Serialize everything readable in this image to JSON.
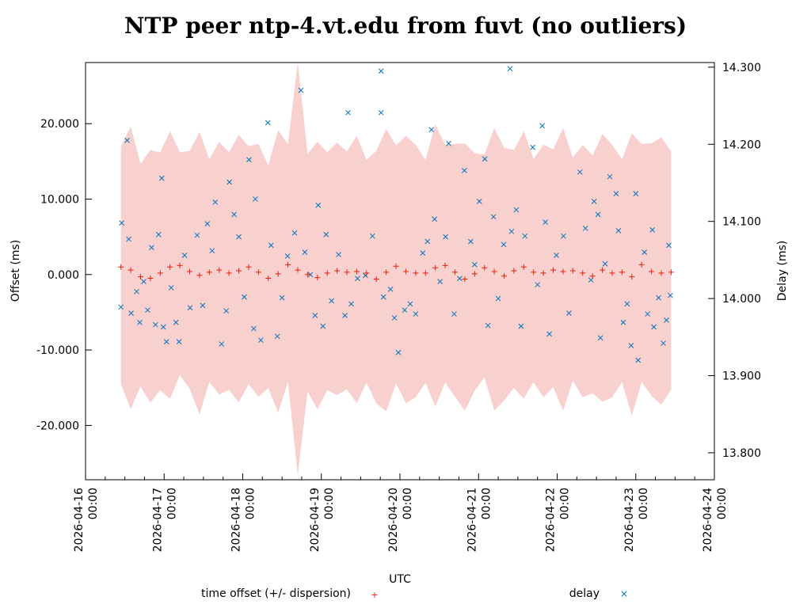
{
  "chart_data": {
    "type": "scatter",
    "title": "NTP peer ntp-4.vt.edu from fuvt (no outliers)",
    "xlabel": "UTC",
    "ylabel": "Offset (ms)",
    "y2label": "Delay (ms)",
    "x_unit": "days since 2026-04-16 00:00 UTC",
    "xlim": [
      0,
      8
    ],
    "ylim": [
      -27.2,
      28.1
    ],
    "y2lim": [
      13.765,
      14.306
    ],
    "x_ticks": [
      {
        "v": 0,
        "date": "2026-04-16",
        "time": "00:00"
      },
      {
        "v": 1,
        "date": "2026-04-17",
        "time": "00:00"
      },
      {
        "v": 2,
        "date": "2026-04-18",
        "time": "00:00"
      },
      {
        "v": 3,
        "date": "2026-04-19",
        "time": "00:00"
      },
      {
        "v": 4,
        "date": "2026-04-20",
        "time": "00:00"
      },
      {
        "v": 5,
        "date": "2026-04-21",
        "time": "00:00"
      },
      {
        "v": 6,
        "date": "2026-04-22",
        "time": "00:00"
      },
      {
        "v": 7,
        "date": "2026-04-23",
        "time": "00:00"
      },
      {
        "v": 8,
        "date": "2026-04-24",
        "time": "00:00"
      }
    ],
    "y_ticks": [
      {
        "v": 20,
        "label": "20.000"
      },
      {
        "v": 10,
        "label": "10.000"
      },
      {
        "v": 0,
        "label": "0.000"
      },
      {
        "v": -10,
        "label": "-10.000"
      },
      {
        "v": -20,
        "label": "-20.000"
      }
    ],
    "y2_ticks": [
      {
        "v": 14.3,
        "label": "14.300"
      },
      {
        "v": 14.2,
        "label": "14.200"
      },
      {
        "v": 14.1,
        "label": "14.100"
      },
      {
        "v": 14.0,
        "label": "14.000"
      },
      {
        "v": 13.9,
        "label": "13.900"
      },
      {
        "v": 13.8,
        "label": "13.800"
      }
    ],
    "legend": [
      {
        "label": "time offset (+/- dispersion)",
        "marker": "+",
        "color": "#e8200c"
      },
      {
        "label": "delay",
        "marker": "x",
        "color": "#0072bd"
      }
    ],
    "legend_position": "bottom",
    "band_color": "#f8d0ce",
    "offset_series": {
      "x_start": 0.45,
      "x_step": 0.125,
      "offset": [
        1.0,
        0.6,
        -0.3,
        -0.5,
        0.2,
        1.0,
        1.2,
        0.4,
        -0.1,
        0.3,
        0.6,
        0.2,
        0.5,
        1.0,
        0.3,
        -0.5,
        0.1,
        1.3,
        0.6,
        0.0,
        -0.4,
        0.2,
        0.5,
        0.3,
        0.4,
        0.2,
        -0.6,
        0.3,
        1.1,
        0.4,
        0.2,
        0.2,
        0.9,
        1.2,
        0.3,
        -0.6,
        0.1,
        0.9,
        0.4,
        -0.2,
        0.5,
        1.0,
        0.3,
        0.2,
        0.6,
        0.4,
        0.5,
        0.2,
        -0.2,
        0.6,
        0.2,
        0.3,
        -0.3,
        1.3,
        0.4,
        0.2,
        0.3
      ],
      "dispersion": [
        16,
        19,
        15,
        17,
        16,
        18,
        15,
        16,
        19,
        15,
        17,
        16,
        18,
        16,
        17,
        15,
        19,
        16,
        28,
        16,
        18,
        16,
        17,
        16,
        18,
        15,
        17,
        19,
        16,
        18,
        17,
        15,
        19,
        16,
        17,
        18,
        16,
        15,
        19,
        17,
        16,
        18,
        15,
        17,
        16,
        19,
        15,
        17,
        16,
        18,
        17,
        15,
        19,
        16,
        17,
        18,
        16
      ]
    },
    "delay_points": [
      [
        0.45,
        13.989
      ],
      [
        0.46,
        14.098
      ],
      [
        0.53,
        14.205
      ],
      [
        0.55,
        14.077
      ],
      [
        0.58,
        13.981
      ],
      [
        0.65,
        14.009
      ],
      [
        0.69,
        13.969
      ],
      [
        0.74,
        14.022
      ],
      [
        0.79,
        13.985
      ],
      [
        0.84,
        14.066
      ],
      [
        0.89,
        13.966
      ],
      [
        0.93,
        14.083
      ],
      [
        0.97,
        14.156
      ],
      [
        0.99,
        13.963
      ],
      [
        1.03,
        13.944
      ],
      [
        1.09,
        14.014
      ],
      [
        1.15,
        13.969
      ],
      [
        1.19,
        13.944
      ],
      [
        1.26,
        14.056
      ],
      [
        1.33,
        13.988
      ],
      [
        1.42,
        14.082
      ],
      [
        1.49,
        13.991
      ],
      [
        1.55,
        14.097
      ],
      [
        1.61,
        14.062
      ],
      [
        1.65,
        14.125
      ],
      [
        1.73,
        13.941
      ],
      [
        1.79,
        13.984
      ],
      [
        1.83,
        14.151
      ],
      [
        1.89,
        14.109
      ],
      [
        1.95,
        14.08
      ],
      [
        2.02,
        14.002
      ],
      [
        2.08,
        14.18
      ],
      [
        2.14,
        13.961
      ],
      [
        2.16,
        14.129
      ],
      [
        2.23,
        13.946
      ],
      [
        2.32,
        14.228
      ],
      [
        2.36,
        14.069
      ],
      [
        2.44,
        13.951
      ],
      [
        2.5,
        14.001
      ],
      [
        2.57,
        14.055
      ],
      [
        2.66,
        14.085
      ],
      [
        2.74,
        14.27
      ],
      [
        2.79,
        14.06
      ],
      [
        2.86,
        14.031
      ],
      [
        2.92,
        13.978
      ],
      [
        2.96,
        14.121
      ],
      [
        3.02,
        13.964
      ],
      [
        3.06,
        14.083
      ],
      [
        3.13,
        13.997
      ],
      [
        3.22,
        14.057
      ],
      [
        3.3,
        13.978
      ],
      [
        3.34,
        14.241
      ],
      [
        3.38,
        13.993
      ],
      [
        3.46,
        14.026
      ],
      [
        3.56,
        14.03
      ],
      [
        3.65,
        14.081
      ],
      [
        3.76,
        14.295
      ],
      [
        3.76,
        14.241
      ],
      [
        3.79,
        14.002
      ],
      [
        3.88,
        14.012
      ],
      [
        3.93,
        13.975
      ],
      [
        3.98,
        13.93
      ],
      [
        4.06,
        13.985
      ],
      [
        4.13,
        13.993
      ],
      [
        4.2,
        13.98
      ],
      [
        4.29,
        14.059
      ],
      [
        4.35,
        14.074
      ],
      [
        4.4,
        14.219
      ],
      [
        4.44,
        14.103
      ],
      [
        4.51,
        14.022
      ],
      [
        4.58,
        14.08
      ],
      [
        4.62,
        14.201
      ],
      [
        4.69,
        13.98
      ],
      [
        4.76,
        14.026
      ],
      [
        4.82,
        14.166
      ],
      [
        4.9,
        14.074
      ],
      [
        4.95,
        14.044
      ],
      [
        5.01,
        14.126
      ],
      [
        5.08,
        14.181
      ],
      [
        5.12,
        13.965
      ],
      [
        5.19,
        14.106
      ],
      [
        5.25,
        14.0
      ],
      [
        5.32,
        14.07
      ],
      [
        5.4,
        14.298
      ],
      [
        5.42,
        14.087
      ],
      [
        5.48,
        14.115
      ],
      [
        5.54,
        13.964
      ],
      [
        5.59,
        14.081
      ],
      [
        5.69,
        14.196
      ],
      [
        5.75,
        14.018
      ],
      [
        5.81,
        14.224
      ],
      [
        5.85,
        14.099
      ],
      [
        5.9,
        13.954
      ],
      [
        5.99,
        14.056
      ],
      [
        6.08,
        14.081
      ],
      [
        6.15,
        13.981
      ],
      [
        6.29,
        14.164
      ],
      [
        6.36,
        14.091
      ],
      [
        6.43,
        14.024
      ],
      [
        6.47,
        14.126
      ],
      [
        6.52,
        14.109
      ],
      [
        6.55,
        13.949
      ],
      [
        6.61,
        14.045
      ],
      [
        6.67,
        14.158
      ],
      [
        6.75,
        14.136
      ],
      [
        6.78,
        14.088
      ],
      [
        6.84,
        13.969
      ],
      [
        6.89,
        13.993
      ],
      [
        6.94,
        13.939
      ],
      [
        7.0,
        14.136
      ],
      [
        7.03,
        13.92
      ],
      [
        7.11,
        14.06
      ],
      [
        7.15,
        13.98
      ],
      [
        7.21,
        14.089
      ],
      [
        7.23,
        13.963
      ],
      [
        7.29,
        14.001
      ],
      [
        7.35,
        13.942
      ],
      [
        7.39,
        13.972
      ],
      [
        7.42,
        14.069
      ],
      [
        7.44,
        14.004
      ]
    ]
  }
}
